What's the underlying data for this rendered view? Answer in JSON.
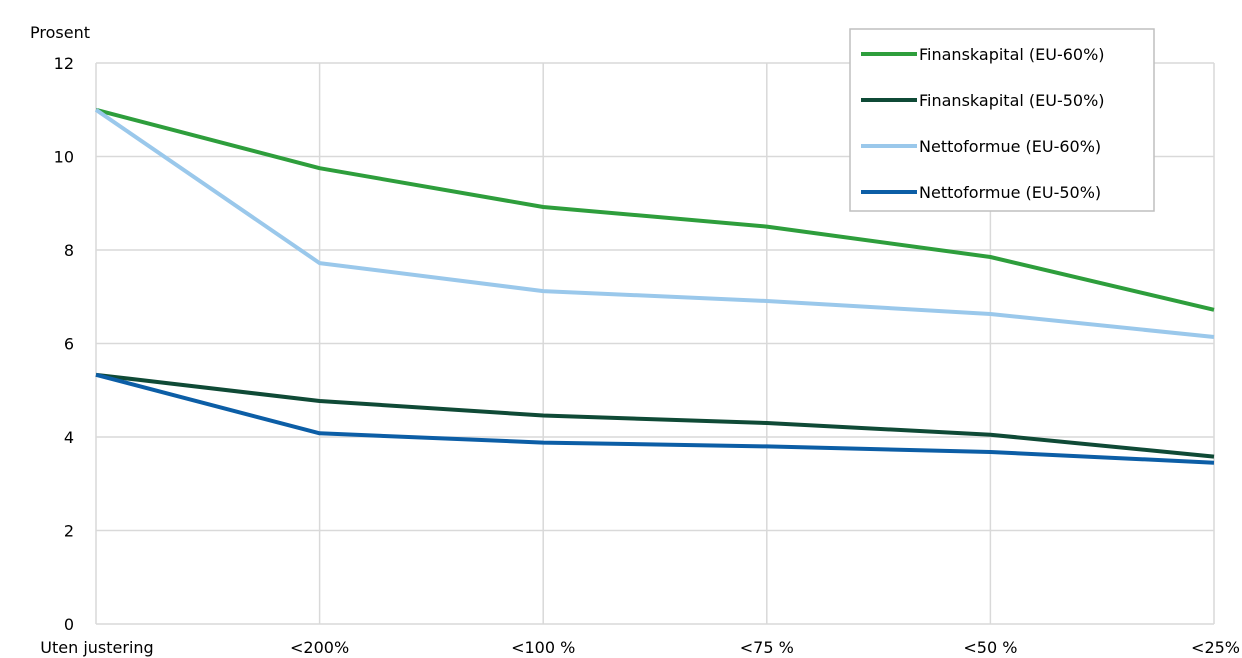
{
  "chart_data": {
    "type": "line",
    "ylabel": "Prosent",
    "xlabel": "",
    "categories": [
      "Uten justering",
      "<200%",
      "<100 %",
      "<75 %",
      "<50 %",
      "<25%"
    ],
    "ylim": [
      0,
      12
    ],
    "yticks": [
      0,
      2,
      4,
      6,
      8,
      10,
      12
    ],
    "grid": true,
    "legend_position": "top-right",
    "series": [
      {
        "name": "Finanskapital (EU-60%)",
        "color": "#2e9e3c",
        "values": [
          11.0,
          9.75,
          8.92,
          8.5,
          7.85,
          6.72
        ]
      },
      {
        "name": "Finanskapital (EU-50%)",
        "color": "#0f4a36",
        "values": [
          5.33,
          4.77,
          4.46,
          4.3,
          4.05,
          3.58
        ]
      },
      {
        "name": "Nettoformue (EU-60%)",
        "color": "#9ac8eb",
        "values": [
          11.0,
          7.72,
          7.12,
          6.91,
          6.63,
          6.14
        ]
      },
      {
        "name": "Nettoformue (EU-50%)",
        "color": "#0c5ea6",
        "values": [
          5.33,
          4.08,
          3.88,
          3.8,
          3.68,
          3.45
        ]
      }
    ]
  }
}
